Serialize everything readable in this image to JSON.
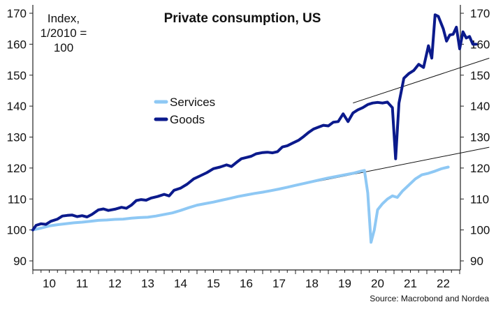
{
  "chart_data": {
    "type": "line",
    "title": "Private consumption, US",
    "index_note": [
      "Index,",
      "1/2010 =",
      "100"
    ],
    "source": "Source: Macrobond and Nordea",
    "x_tick_labels": [
      "10",
      "11",
      "12",
      "13",
      "14",
      "15",
      "16",
      "17",
      "18",
      "19",
      "20",
      "21",
      "22"
    ],
    "y_tick_labels": [
      "90",
      "100",
      "110",
      "120",
      "130",
      "140",
      "150",
      "160",
      "170"
    ],
    "ylim": [
      88,
      172
    ],
    "xlim": [
      2010.0,
      2023.15
    ],
    "legend_position": "center-left",
    "series": [
      {
        "name": "Services",
        "color": "#8ec8f4",
        "points": [
          [
            2010.0,
            100.0
          ],
          [
            2010.25,
            100.6
          ],
          [
            2010.5,
            101.3
          ],
          [
            2010.75,
            101.7
          ],
          [
            2011.0,
            102.0
          ],
          [
            2011.25,
            102.3
          ],
          [
            2011.5,
            102.5
          ],
          [
            2011.75,
            102.8
          ],
          [
            2012.0,
            103.1
          ],
          [
            2012.25,
            103.2
          ],
          [
            2012.5,
            103.4
          ],
          [
            2012.75,
            103.5
          ],
          [
            2013.0,
            103.8
          ],
          [
            2013.25,
            104.0
          ],
          [
            2013.5,
            104.1
          ],
          [
            2013.75,
            104.5
          ],
          [
            2014.0,
            105.0
          ],
          [
            2014.25,
            105.5
          ],
          [
            2014.5,
            106.3
          ],
          [
            2014.75,
            107.2
          ],
          [
            2015.0,
            108.0
          ],
          [
            2015.25,
            108.5
          ],
          [
            2015.5,
            109.0
          ],
          [
            2015.75,
            109.6
          ],
          [
            2016.0,
            110.2
          ],
          [
            2016.25,
            110.8
          ],
          [
            2016.5,
            111.3
          ],
          [
            2016.75,
            111.8
          ],
          [
            2017.0,
            112.2
          ],
          [
            2017.25,
            112.7
          ],
          [
            2017.5,
            113.2
          ],
          [
            2017.75,
            113.8
          ],
          [
            2018.0,
            114.4
          ],
          [
            2018.25,
            115.0
          ],
          [
            2018.5,
            115.6
          ],
          [
            2018.75,
            116.2
          ],
          [
            2019.0,
            116.8
          ],
          [
            2019.25,
            117.3
          ],
          [
            2019.5,
            117.8
          ],
          [
            2019.75,
            118.3
          ],
          [
            2020.0,
            119.0
          ],
          [
            2020.1,
            119.2
          ],
          [
            2020.2,
            112.0
          ],
          [
            2020.3,
            96.0
          ],
          [
            2020.4,
            100.0
          ],
          [
            2020.5,
            106.5
          ],
          [
            2020.65,
            108.5
          ],
          [
            2020.8,
            110.0
          ],
          [
            2020.95,
            111.0
          ],
          [
            2021.1,
            110.5
          ],
          [
            2021.25,
            112.5
          ],
          [
            2021.45,
            114.5
          ],
          [
            2021.65,
            116.5
          ],
          [
            2021.85,
            117.8
          ],
          [
            2022.05,
            118.3
          ],
          [
            2022.25,
            119.0
          ],
          [
            2022.45,
            119.8
          ],
          [
            2022.65,
            120.3
          ]
        ]
      },
      {
        "name": "Goods",
        "color": "#0b1a8c",
        "points": [
          [
            2010.0,
            100.0
          ],
          [
            2010.1,
            101.5
          ],
          [
            2010.25,
            102.0
          ],
          [
            2010.4,
            101.8
          ],
          [
            2010.55,
            102.8
          ],
          [
            2010.75,
            103.5
          ],
          [
            2010.9,
            104.5
          ],
          [
            2011.05,
            104.7
          ],
          [
            2011.2,
            104.8
          ],
          [
            2011.35,
            104.3
          ],
          [
            2011.5,
            104.6
          ],
          [
            2011.65,
            104.2
          ],
          [
            2011.8,
            105.0
          ],
          [
            2012.0,
            106.5
          ],
          [
            2012.15,
            106.8
          ],
          [
            2012.3,
            106.3
          ],
          [
            2012.5,
            106.7
          ],
          [
            2012.7,
            107.3
          ],
          [
            2012.85,
            107.0
          ],
          [
            2013.0,
            108.0
          ],
          [
            2013.15,
            109.5
          ],
          [
            2013.3,
            109.8
          ],
          [
            2013.45,
            109.6
          ],
          [
            2013.6,
            110.3
          ],
          [
            2013.8,
            110.8
          ],
          [
            2014.0,
            111.5
          ],
          [
            2014.15,
            111.0
          ],
          [
            2014.3,
            112.8
          ],
          [
            2014.5,
            113.5
          ],
          [
            2014.7,
            114.8
          ],
          [
            2014.9,
            116.5
          ],
          [
            2015.1,
            117.5
          ],
          [
            2015.3,
            118.5
          ],
          [
            2015.5,
            119.8
          ],
          [
            2015.7,
            120.3
          ],
          [
            2015.9,
            121.0
          ],
          [
            2016.05,
            120.5
          ],
          [
            2016.2,
            121.8
          ],
          [
            2016.35,
            123.0
          ],
          [
            2016.5,
            123.4
          ],
          [
            2016.65,
            123.8
          ],
          [
            2016.8,
            124.6
          ],
          [
            2017.0,
            125.0
          ],
          [
            2017.15,
            125.1
          ],
          [
            2017.3,
            124.9
          ],
          [
            2017.45,
            125.3
          ],
          [
            2017.6,
            126.8
          ],
          [
            2017.75,
            127.2
          ],
          [
            2017.9,
            128.0
          ],
          [
            2018.1,
            129.0
          ],
          [
            2018.25,
            130.2
          ],
          [
            2018.4,
            131.5
          ],
          [
            2018.55,
            132.6
          ],
          [
            2018.7,
            133.2
          ],
          [
            2018.85,
            133.8
          ],
          [
            2019.0,
            133.6
          ],
          [
            2019.15,
            134.8
          ],
          [
            2019.3,
            135.0
          ],
          [
            2019.45,
            137.5
          ],
          [
            2019.6,
            135.0
          ],
          [
            2019.75,
            137.8
          ],
          [
            2019.9,
            138.8
          ],
          [
            2020.05,
            139.5
          ],
          [
            2020.2,
            140.5
          ],
          [
            2020.35,
            141.0
          ],
          [
            2020.5,
            141.2
          ],
          [
            2020.65,
            141.0
          ],
          [
            2020.8,
            141.3
          ],
          [
            2020.95,
            139.5
          ],
          [
            2021.05,
            123.0
          ],
          [
            2021.15,
            141.0
          ],
          [
            2021.3,
            149.0
          ],
          [
            2021.45,
            150.5
          ],
          [
            2021.6,
            151.5
          ],
          [
            2021.75,
            153.5
          ],
          [
            2021.9,
            152.5
          ],
          [
            2022.05,
            159.5
          ],
          [
            2022.15,
            155.5
          ],
          [
            2022.25,
            169.5
          ],
          [
            2022.35,
            169.0
          ],
          [
            2022.5,
            165.0
          ],
          [
            2022.6,
            161.0
          ],
          [
            2022.7,
            163.0
          ],
          [
            2022.8,
            163.2
          ],
          [
            2022.9,
            165.5
          ],
          [
            2023.0,
            158.5
          ],
          [
            2023.1,
            164.0
          ],
          [
            2023.2,
            162.0
          ],
          [
            2023.3,
            162.5
          ],
          [
            2023.4,
            160.0
          ],
          [
            2023.5,
            160.0
          ]
        ]
      }
    ],
    "trend_lines": [
      [
        [
          2019.75,
          141.0
        ],
        [
          2023.9,
          155.5
        ]
      ],
      [
        [
          2017.25,
          112.7
        ],
        [
          2023.9,
          126.7
        ]
      ]
    ]
  }
}
